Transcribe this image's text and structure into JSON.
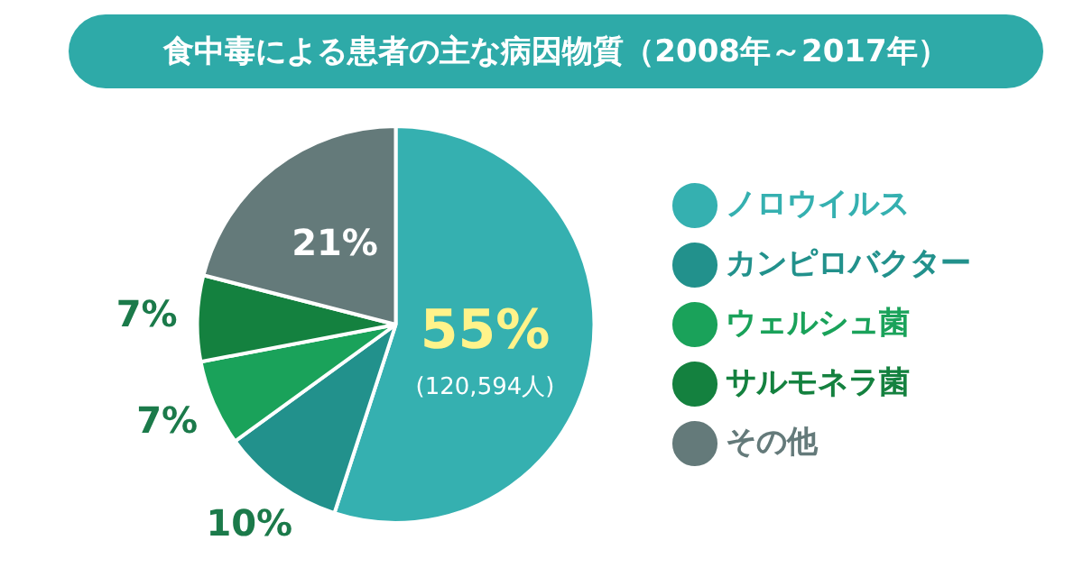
{
  "chart_data": {
    "type": "pie",
    "title": "食中毒による患者の主な病因物質（2008年～2017年）",
    "categories": [
      "ノロウイルス",
      "カンピロバクター",
      "ウェルシュ菌",
      "サルモネラ菌",
      "その他"
    ],
    "values": [
      55,
      10,
      7,
      7,
      21
    ],
    "colors": [
      "#35b0b0",
      "#22918c",
      "#1aa25a",
      "#14813f",
      "#647a7a"
    ],
    "value_labels": [
      "55%",
      "10%",
      "7%",
      "7%",
      "21%"
    ],
    "annotations": [
      "(120,594人)"
    ],
    "legend": "right"
  }
}
